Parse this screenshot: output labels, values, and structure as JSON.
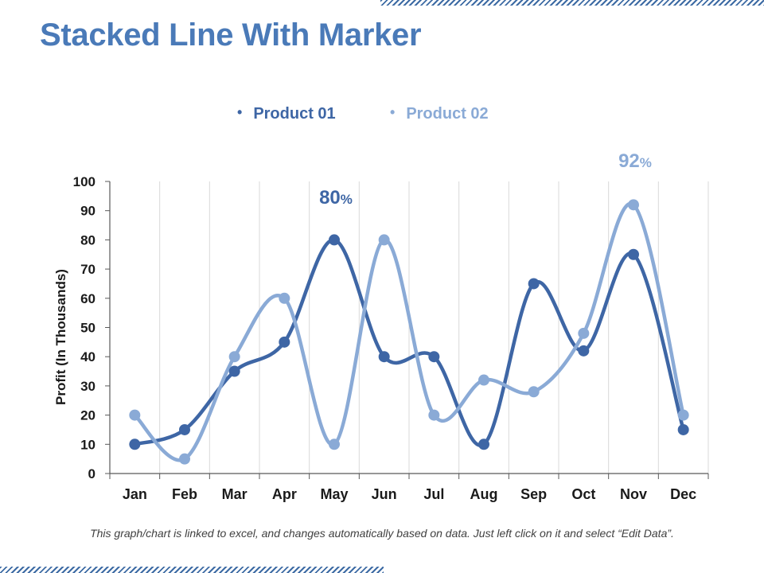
{
  "title": "Stacked Line With Marker",
  "footnote": "This graph/chart is linked to excel, and changes automatically based on data. Just left click on it and select “Edit Data”.",
  "colors": {
    "product01": "#3e66a5",
    "product02": "#8aaad6",
    "title": "#4a7ab8",
    "axis_text": "#1a1a1a",
    "grid": "#d9d9d9"
  },
  "chart_data": {
    "type": "line",
    "title": "",
    "xlabel": "",
    "ylabel": "Profit (In Thousands)",
    "ylim": [
      0,
      100
    ],
    "yticks": [
      0,
      10,
      20,
      30,
      40,
      50,
      60,
      70,
      80,
      90,
      100
    ],
    "categories": [
      "Jan",
      "Feb",
      "Mar",
      "Apr",
      "May",
      "Jun",
      "Jul",
      "Aug",
      "Sep",
      "Oct",
      "Nov",
      "Dec"
    ],
    "series": [
      {
        "name": "Product 01",
        "values": [
          10,
          15,
          35,
          45,
          80,
          40,
          40,
          10,
          65,
          42,
          75,
          15
        ]
      },
      {
        "name": "Product 02",
        "values": [
          20,
          5,
          40,
          60,
          10,
          80,
          20,
          32,
          28,
          48,
          92,
          20
        ]
      }
    ],
    "annotations": [
      {
        "series": "Product 01",
        "category": "May",
        "value": "80",
        "suffix": "%"
      },
      {
        "series": "Product 02",
        "category": "Nov",
        "value": "92",
        "suffix": "%"
      }
    ],
    "legend": "top-center",
    "grid": "vertical"
  }
}
